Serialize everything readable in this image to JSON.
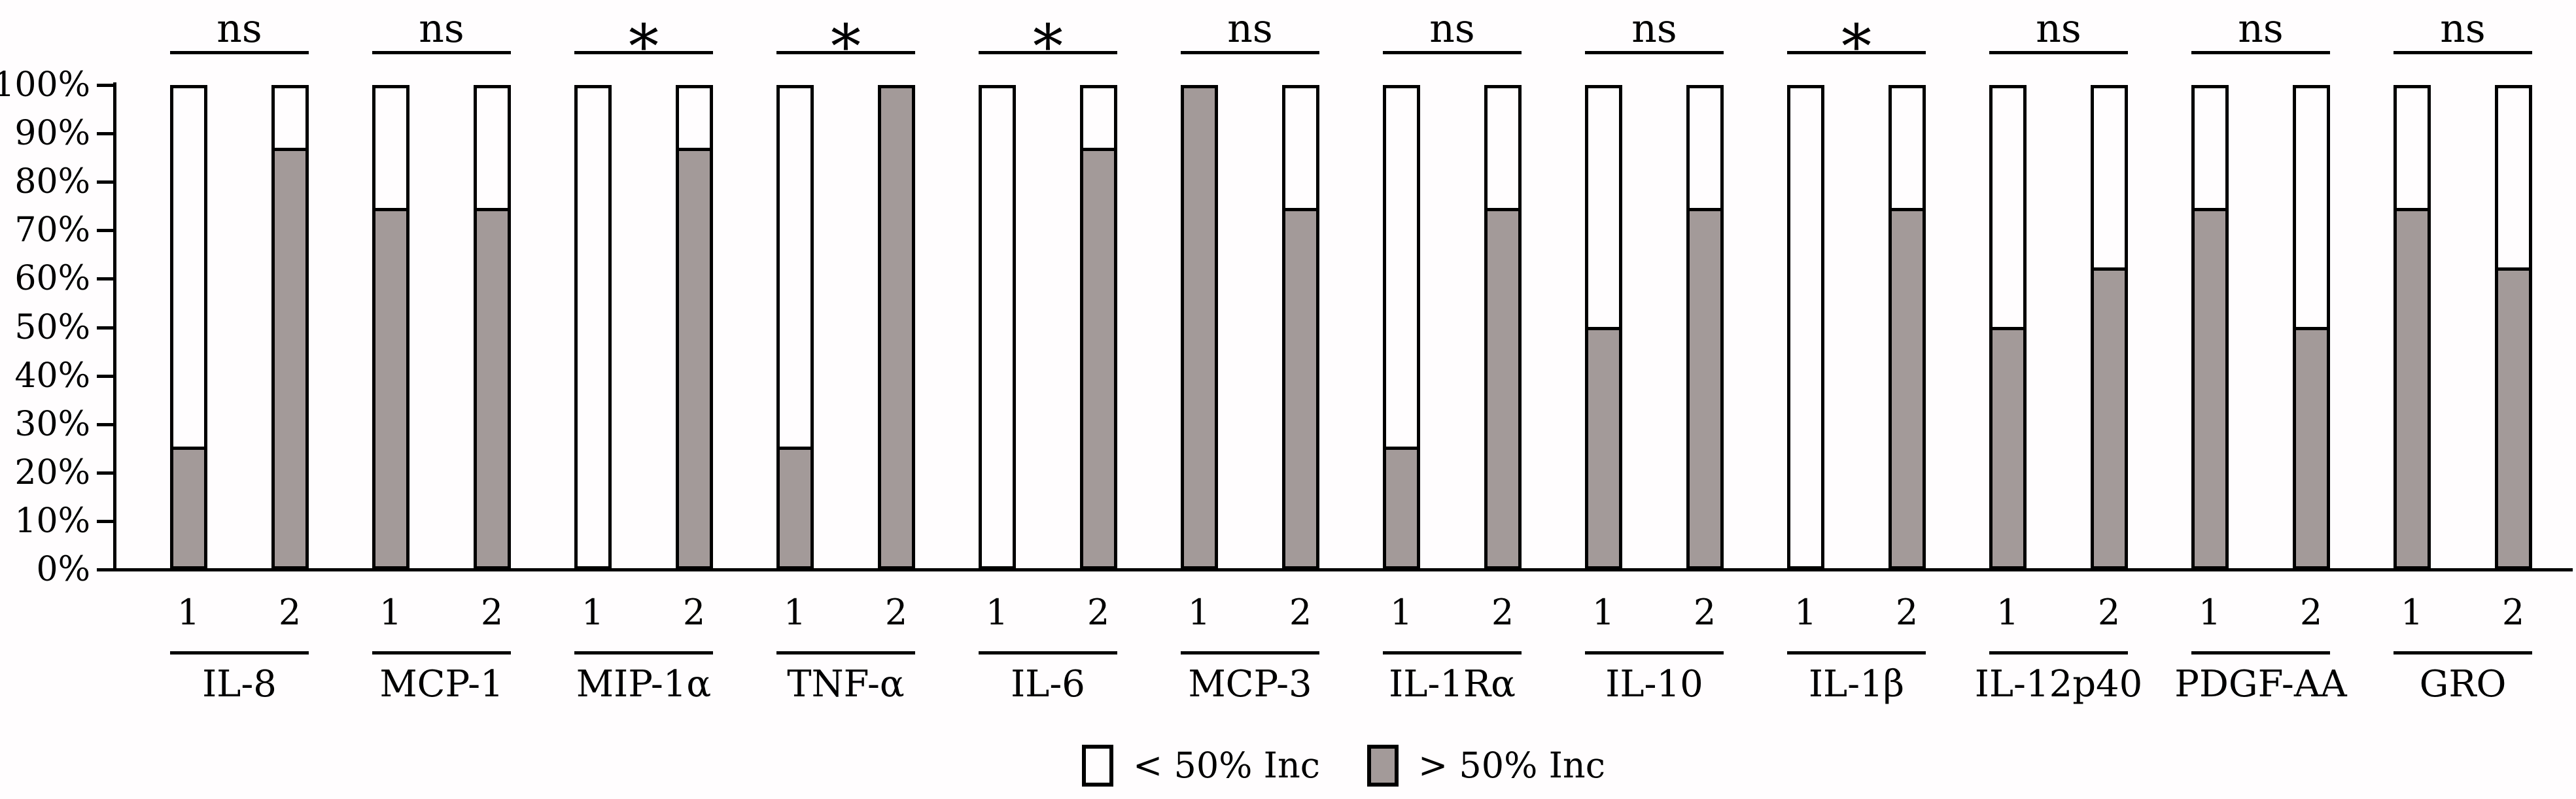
{
  "chart_data": {
    "type": "bar",
    "subtype": "100-percent-stacked-paired-columns",
    "title": "",
    "xlabel": "",
    "ylabel": "",
    "grid": false,
    "y_axis": {
      "min": 0,
      "max": 100,
      "step": 10,
      "tick_labels": [
        "0%",
        "10%",
        "20%",
        "30%",
        "40%",
        "50%",
        "60%",
        "70%",
        "80%",
        "90%",
        "100%"
      ]
    },
    "bar_labels": [
      "1",
      "2"
    ],
    "series": [
      {
        "name": "< 50% Inc",
        "color": "#fffdfe"
      },
      {
        "name": "> 50% Inc",
        "color": "#a39a99"
      }
    ],
    "groups": [
      {
        "category": "IL-8",
        "significance": "ns",
        "gt50_pct": [
          25,
          87.5
        ]
      },
      {
        "category": "MCP-1",
        "significance": "ns",
        "gt50_pct": [
          75,
          75
        ]
      },
      {
        "category": "MIP-1α",
        "significance": "*",
        "gt50_pct": [
          0,
          87.5
        ]
      },
      {
        "category": "TNF-α",
        "significance": "*",
        "gt50_pct": [
          25,
          100
        ]
      },
      {
        "category": "IL-6",
        "significance": "*",
        "gt50_pct": [
          0,
          87.5
        ]
      },
      {
        "category": "MCP-3",
        "significance": "ns",
        "gt50_pct": [
          100,
          75
        ]
      },
      {
        "category": "IL-1Rα",
        "significance": "ns",
        "gt50_pct": [
          25,
          75
        ]
      },
      {
        "category": "IL-10",
        "significance": "ns",
        "gt50_pct": [
          50,
          75
        ]
      },
      {
        "category": "IL-1β",
        "significance": "*",
        "gt50_pct": [
          0,
          75
        ]
      },
      {
        "category": "IL-12p40",
        "significance": "ns",
        "gt50_pct": [
          50,
          62.5
        ]
      },
      {
        "category": "PDGF-AA",
        "significance": "ns",
        "gt50_pct": [
          75,
          50
        ]
      },
      {
        "category": "GRO",
        "significance": "ns",
        "gt50_pct": [
          75,
          62.5
        ]
      }
    ],
    "legend": {
      "position": "bottom-center",
      "items": [
        {
          "label": "< 50% Inc",
          "swatch_color": "#fffdfe"
        },
        {
          "label": "> 50% Inc",
          "swatch_color": "#a39a99"
        }
      ]
    },
    "colors": {
      "axis": "#000000",
      "bar_outline": "#000000",
      "gt50_fill": "#a39a99",
      "lt50_fill": "#fffdfe",
      "background": "#fffdfe"
    }
  }
}
